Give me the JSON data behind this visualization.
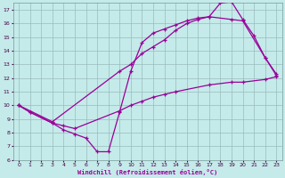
{
  "xlabel": "Windchill (Refroidissement éolien,°C)",
  "xlim": [
    -0.5,
    23.5
  ],
  "ylim": [
    6,
    17.5
  ],
  "xticks": [
    0,
    1,
    2,
    3,
    4,
    5,
    6,
    7,
    8,
    9,
    10,
    11,
    12,
    13,
    14,
    15,
    16,
    17,
    18,
    19,
    20,
    21,
    22,
    23
  ],
  "yticks": [
    6,
    7,
    8,
    9,
    10,
    11,
    12,
    13,
    14,
    15,
    16,
    17
  ],
  "bg_color": "#c5eaea",
  "line_color": "#990099",
  "grid_color": "#99bbbb",
  "line1_x": [
    0,
    1,
    3,
    4,
    5,
    6,
    7,
    8,
    9,
    10,
    11,
    12,
    13,
    14,
    15,
    16,
    17,
    18,
    19,
    20,
    21,
    22,
    23
  ],
  "line1_y": [
    10.0,
    9.5,
    8.7,
    8.2,
    7.9,
    7.6,
    6.6,
    6.6,
    9.5,
    12.5,
    14.6,
    15.3,
    15.6,
    15.9,
    16.2,
    16.4,
    16.5,
    17.5,
    17.6,
    16.3,
    15.1,
    13.5,
    12.3
  ],
  "line2_x": [
    0,
    3,
    9,
    10,
    11,
    12,
    13,
    14,
    15,
    16,
    17,
    19,
    20,
    22,
    23
  ],
  "line2_y": [
    10.0,
    8.8,
    12.5,
    13.0,
    13.8,
    14.3,
    14.8,
    15.5,
    16.0,
    16.3,
    16.5,
    16.3,
    16.2,
    13.5,
    12.2
  ],
  "line3_x": [
    0,
    1,
    3,
    4,
    5,
    9,
    10,
    11,
    12,
    13,
    14,
    17,
    19,
    20,
    22,
    23
  ],
  "line3_y": [
    10.0,
    9.5,
    8.7,
    8.5,
    8.3,
    9.6,
    10.0,
    10.3,
    10.6,
    10.8,
    11.0,
    11.5,
    11.7,
    11.7,
    11.9,
    12.1
  ]
}
